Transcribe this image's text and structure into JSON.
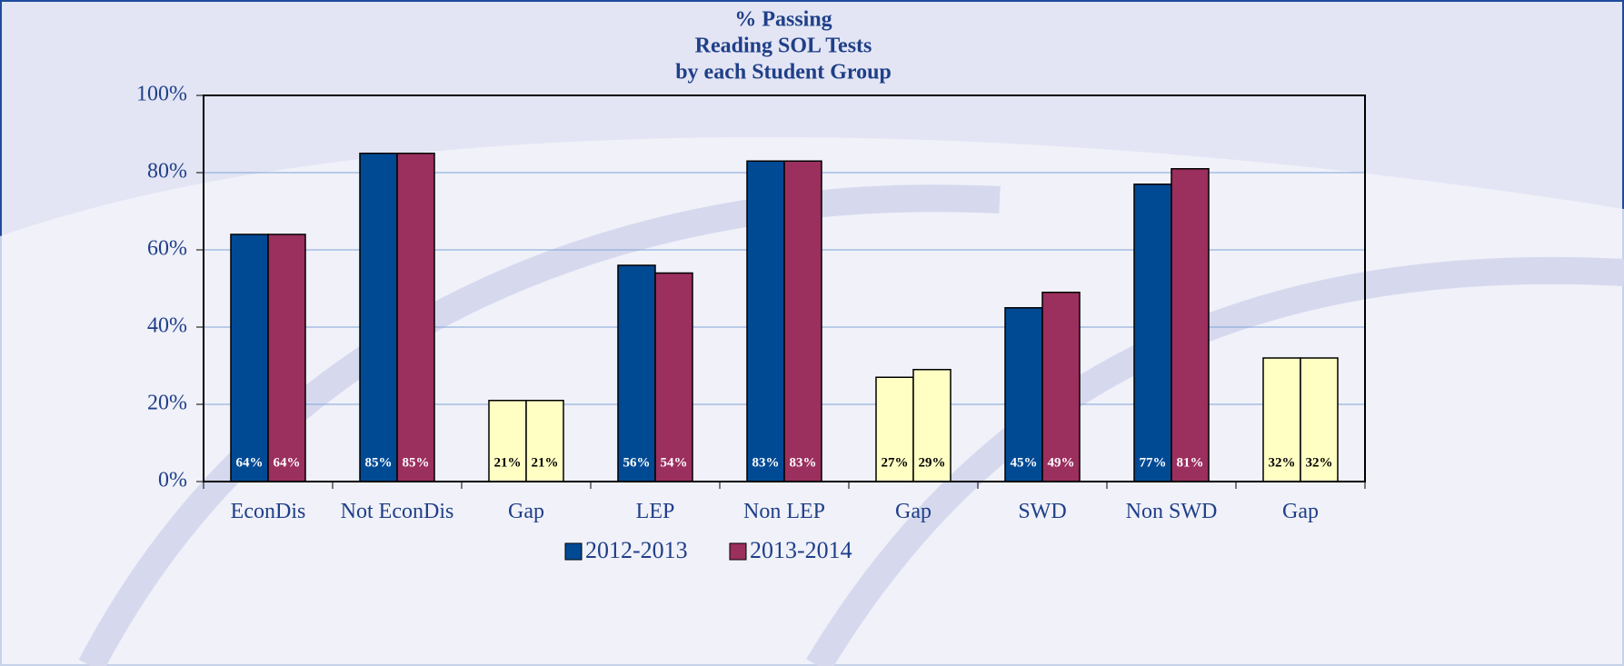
{
  "chart_data": {
    "type": "bar",
    "title": [
      "% Passing",
      "Reading SOL Tests",
      "by each Student Group"
    ],
    "categories": [
      "EconDis",
      "Not EconDis",
      "Gap",
      "LEP",
      "Non LEP",
      "Gap",
      "SWD",
      "Non SWD",
      "Gap"
    ],
    "series": [
      {
        "name": "2012-2013",
        "color": "#004a94",
        "colors": [
          "#004a94",
          "#004a94",
          "#ffffc4",
          "#004a94",
          "#004a94",
          "#ffffc4",
          "#004a94",
          "#004a94",
          "#ffffc4"
        ],
        "values": [
          64,
          85,
          21,
          56,
          83,
          27,
          45,
          77,
          32
        ],
        "value_labels": [
          "64%",
          "85%",
          "21%",
          "56%",
          "83%",
          "27%",
          "45%",
          "77%",
          "32%"
        ]
      },
      {
        "name": "2013-2014",
        "color": "#9b2f5e",
        "colors": [
          "#9b2f5e",
          "#9b2f5e",
          "#ffffc4",
          "#9b2f5e",
          "#9b2f5e",
          "#ffffc4",
          "#9b2f5e",
          "#9b2f5e",
          "#ffffc4"
        ],
        "values": [
          64,
          85,
          21,
          54,
          83,
          29,
          49,
          81,
          32
        ],
        "value_labels": [
          "64%",
          "85%",
          "21%",
          "54%",
          "83%",
          "29%",
          "49%",
          "81%",
          "32%"
        ]
      }
    ],
    "ylim": [
      0,
      100
    ],
    "yticks": [
      {
        "value": 0,
        "label": "0%"
      },
      {
        "value": 20,
        "label": "20%"
      },
      {
        "value": 40,
        "label": "40%"
      },
      {
        "value": 60,
        "label": "60%"
      },
      {
        "value": 80,
        "label": "80%"
      },
      {
        "value": 100,
        "label": "100%"
      }
    ],
    "grid": true,
    "legend": "bottom"
  }
}
